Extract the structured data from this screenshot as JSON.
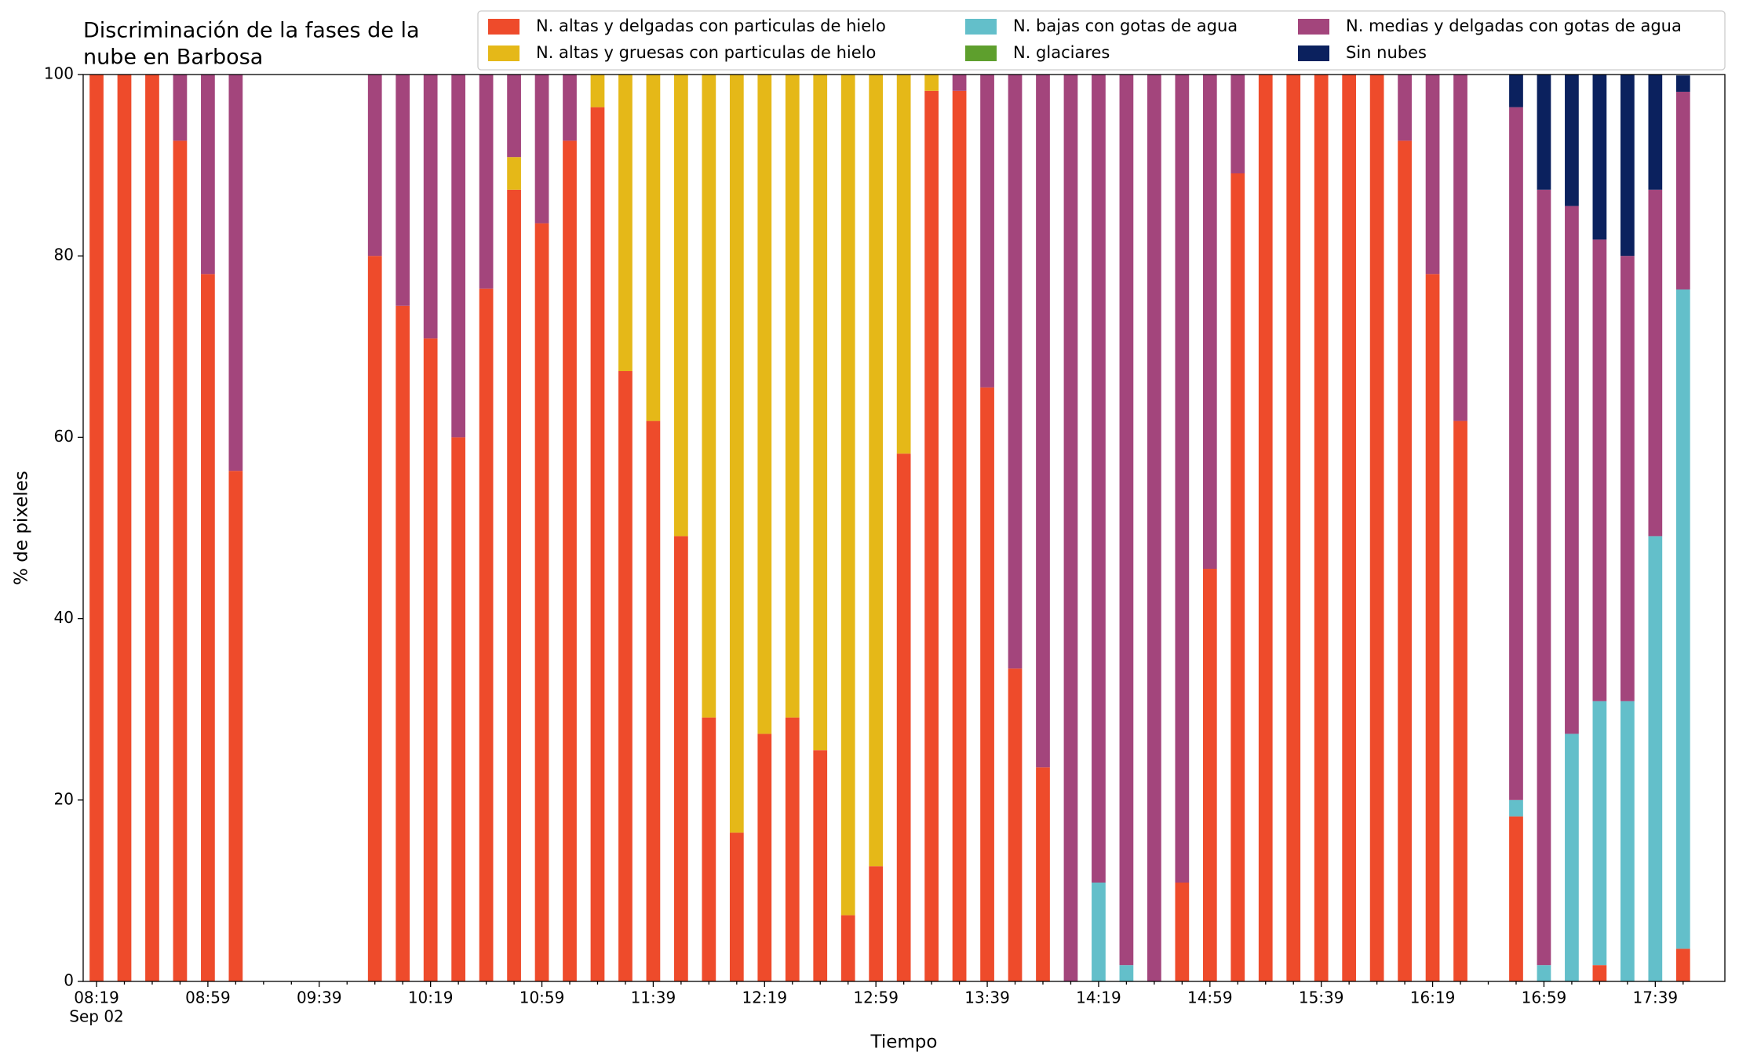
{
  "chart_data": {
    "type": "stacked_bar",
    "title": [
      "Discriminación de la fases de la",
      "nube en Barbosa"
    ],
    "xlabel": "Tiempo",
    "ylabel": "% de pixeles",
    "x_date_label": "Sep 02",
    "categories": [
      "08:19",
      null,
      null,
      null,
      "08:59",
      null,
      null,
      null,
      "09:39",
      null,
      null,
      null,
      "10:19",
      null,
      null,
      null,
      "10:59",
      null,
      null,
      null,
      "11:39",
      null,
      null,
      null,
      "12:19",
      null,
      null,
      null,
      "12:59",
      null,
      null,
      null,
      "13:39",
      null,
      null,
      null,
      "14:19",
      null,
      null,
      null,
      "14:59",
      null,
      null,
      null,
      "15:39",
      null,
      null,
      null,
      "16:19",
      null,
      null,
      null,
      "16:59",
      null,
      null,
      null,
      "17:39",
      null
    ],
    "ylim": [
      0,
      100
    ],
    "yticks": [
      0,
      20,
      40,
      60,
      80,
      100
    ],
    "grid": false,
    "legend": "top",
    "series": [
      {
        "name": "N. altas y delgadas con particulas de hielo",
        "color": "#ee4b2b",
        "values": [
          100,
          100,
          100,
          92.7,
          78,
          56.3,
          null,
          null,
          null,
          null,
          80,
          74.5,
          70.9,
          60,
          76.4,
          87.3,
          83.6,
          92.7,
          96.4,
          67.3,
          61.8,
          49.1,
          29.1,
          16.4,
          27.3,
          29.1,
          25.5,
          7.3,
          12.7,
          58.2,
          98.2,
          98.2,
          65.5,
          34.5,
          23.6,
          0,
          0,
          0,
          0,
          10.9,
          45.5,
          89.1,
          100,
          100,
          100,
          100,
          100,
          92.7,
          78,
          61.8,
          null,
          18.2,
          0,
          0,
          1.8,
          0,
          0,
          3.6
        ]
      },
      {
        "name": "N. altas y gruesas con particulas de hielo",
        "color": "#e5b818",
        "values": [
          0,
          0,
          0,
          0,
          0,
          0,
          null,
          null,
          null,
          null,
          0,
          0,
          0,
          0,
          0,
          3.6,
          0,
          0,
          3.6,
          32.7,
          38.2,
          50.9,
          70.9,
          83.6,
          72.7,
          70.9,
          74.5,
          92.7,
          87.3,
          41.8,
          1.8,
          0,
          0,
          0,
          0,
          0,
          0,
          0,
          0,
          0,
          0,
          0,
          0,
          0,
          0,
          0,
          0,
          0,
          0,
          0,
          null,
          0,
          0,
          0,
          0,
          0,
          0,
          0
        ]
      },
      {
        "name": "N. bajas con gotas de agua",
        "color": "#63bfca",
        "values": [
          0,
          0,
          0,
          0,
          0,
          0,
          null,
          null,
          null,
          null,
          0,
          0,
          0,
          0,
          0,
          0,
          0,
          0,
          0,
          0,
          0,
          0,
          0,
          0,
          0,
          0,
          0,
          0,
          0,
          0,
          0,
          0,
          0,
          0,
          0,
          0,
          10.9,
          1.8,
          0,
          0,
          0,
          0,
          0,
          0,
          0,
          0,
          0,
          0,
          0,
          0,
          null,
          1.8,
          1.8,
          27.3,
          29.1,
          30.9,
          49.1,
          72.7
        ]
      },
      {
        "name": "N. glaciares",
        "color": "#5e9f2d",
        "values": [
          0,
          0,
          0,
          0,
          0,
          0,
          null,
          null,
          null,
          null,
          0,
          0,
          0,
          0,
          0,
          0,
          0,
          0,
          0,
          0,
          0,
          0,
          0,
          0,
          0,
          0,
          0,
          0,
          0,
          0,
          0,
          0,
          0,
          0,
          0,
          0,
          0,
          0,
          0,
          0,
          0,
          0,
          0,
          0,
          0,
          0,
          0,
          0,
          0,
          0,
          null,
          0,
          0,
          0,
          0,
          0,
          0,
          0
        ]
      },
      {
        "name": "N. medias y delgadas con gotas de agua",
        "color": "#a3457c",
        "values": [
          0,
          0,
          0,
          7.3,
          22,
          43.7,
          null,
          null,
          null,
          null,
          20,
          25.5,
          29.1,
          40,
          23.6,
          9.1,
          16.4,
          7.3,
          0,
          0,
          0,
          0,
          0,
          0,
          0,
          0,
          0,
          0,
          0,
          0,
          0,
          1.8,
          34.5,
          65.5,
          76.4,
          100,
          89.1,
          98.2,
          100,
          89.1,
          54.5,
          10.9,
          0,
          0,
          0,
          0,
          0,
          7.3,
          22,
          38.2,
          null,
          76.4,
          85.5,
          58.2,
          50.9,
          49.1,
          38.2,
          21.8
        ]
      },
      {
        "name": "Sin nubes",
        "color": "#0b215e",
        "values": [
          0,
          0,
          0,
          0,
          0,
          0,
          null,
          null,
          null,
          null,
          0,
          0,
          0,
          0,
          0,
          0,
          0,
          0,
          0,
          0,
          0,
          0,
          0,
          0,
          0,
          0,
          0,
          0,
          0,
          0,
          0,
          0,
          0,
          0,
          0,
          0,
          0,
          0,
          0,
          0,
          0,
          0,
          0,
          0,
          0,
          0,
          0,
          0,
          0,
          0,
          null,
          3.6,
          12.7,
          14.5,
          18.2,
          20,
          12.7,
          1.8
        ]
      }
    ]
  }
}
